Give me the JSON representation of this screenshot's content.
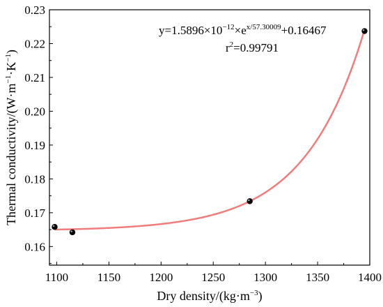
{
  "chart_data": {
    "type": "scatter",
    "xlabel_main": "Dry density/(kg·m",
    "xlabel_exp": "−3",
    "xlabel_tail": ")",
    "ylabel_main": "Thermal conductivity/(W·m",
    "ylabel_exp1": "−1",
    "ylabel_mid": "·K",
    "ylabel_exp2": "−1",
    "ylabel_tail": ")",
    "xlim": [
      1093,
      1400
    ],
    "ylim": [
      0.1545,
      0.23
    ],
    "x_ticks": [
      1100,
      1150,
      1200,
      1250,
      1300,
      1350,
      1400
    ],
    "x_tick_labels": [
      "1100",
      "1150",
      "1200",
      "1250",
      "1300",
      "1350",
      "1400"
    ],
    "y_ticks": [
      0.16,
      0.17,
      0.18,
      0.19,
      0.2,
      0.21,
      0.22,
      0.23
    ],
    "y_tick_labels": [
      "0.16",
      "0.17",
      "0.18",
      "0.19",
      "0.20",
      "0.21",
      "0.22",
      "0.23"
    ],
    "series": [
      {
        "kind": "points",
        "x": [
          1098,
          1115,
          1285,
          1395
        ],
        "y": [
          0.1658,
          0.1642,
          0.1734,
          0.2237
        ],
        "color": "#000000"
      },
      {
        "kind": "fit",
        "model": "exponential",
        "A": 1.5896e-12,
        "t": 57.30009,
        "y0": 0.16467,
        "x_range": [
          1098,
          1395
        ],
        "color": "#f07c7c"
      }
    ],
    "equation": {
      "prefix": "y=1.5896×10",
      "exp1": "−12",
      "mid": "×e",
      "exp2": "x/57.30009",
      "suffix": "+0.16467"
    },
    "r2": {
      "prefix": "r",
      "exp": "2",
      "suffix": "=0.99791"
    },
    "grid": false
  }
}
